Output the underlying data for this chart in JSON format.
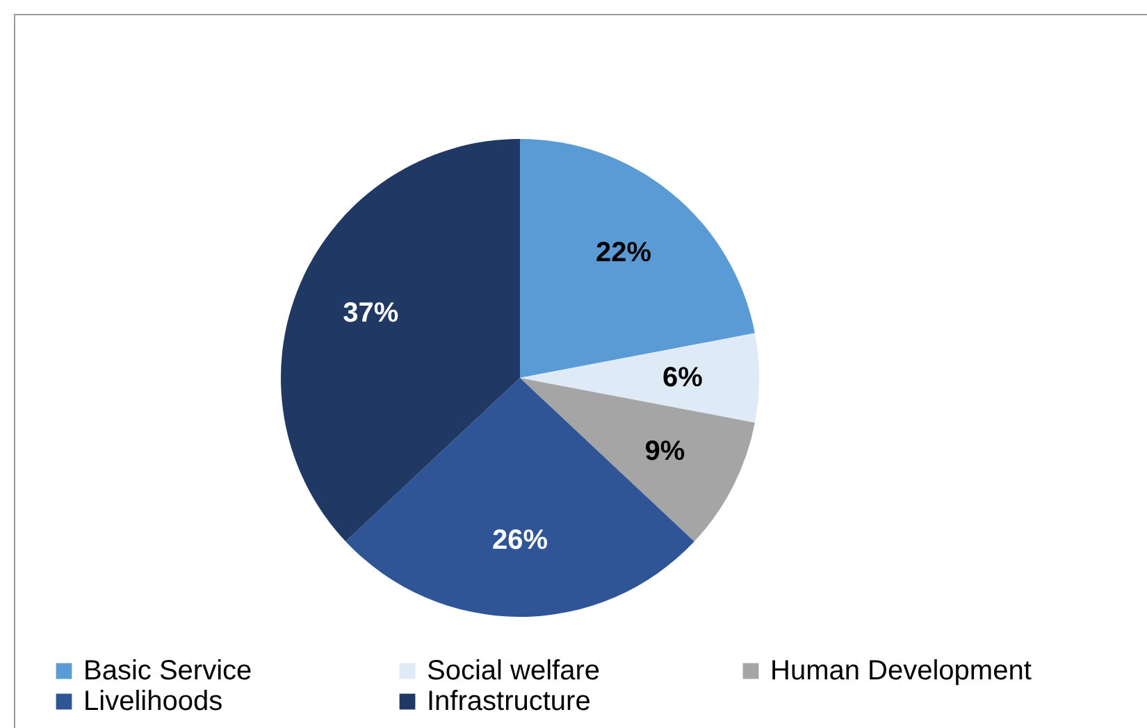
{
  "chart_data": {
    "type": "pie",
    "categories": [
      "Basic Service",
      "Social welfare",
      "Human Development",
      "Livelihoods",
      "Infrastructure"
    ],
    "values": [
      22,
      6,
      9,
      26,
      37
    ],
    "colors": [
      "#5b9bd5",
      "#deebf7",
      "#a5a5a5",
      "#2f5597",
      "#203864"
    ],
    "data_labels": true,
    "value_labels": [
      "22%",
      "6%",
      "9%",
      "26%",
      "37%"
    ],
    "legend": "bottom"
  }
}
